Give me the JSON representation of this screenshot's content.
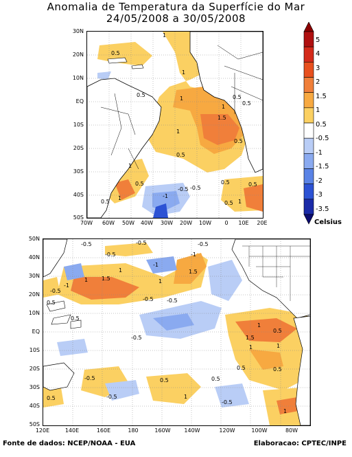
{
  "title": {
    "line1": "Anomalia de Temperatura da Superfície do Mar",
    "line2": "24/05/2008 a 30/05/2008"
  },
  "top_map": {
    "lat_ticks": [
      "30N",
      "20N",
      "10N",
      "EQ",
      "10S",
      "20S",
      "30S",
      "40S",
      "50S"
    ],
    "lon_ticks": [
      "70W",
      "60W",
      "50W",
      "40W",
      "30W",
      "20W",
      "10W",
      "0",
      "10E",
      "20E"
    ],
    "contour_labels": [
      "1",
      "0.5",
      "1",
      "0.5",
      "0.5",
      "1",
      "1",
      "0.5",
      "1.5",
      "1",
      "0.5",
      "1",
      "0.5",
      "0.5",
      "-0.5",
      "-1",
      "0.5",
      "0.5",
      "1",
      "0.5",
      "-0.5",
      "0.5",
      "1"
    ]
  },
  "bottom_map": {
    "lat_ticks": [
      "50N",
      "40N",
      "30N",
      "20N",
      "10N",
      "EQ",
      "10S",
      "20S",
      "30S",
      "40S",
      "50S"
    ],
    "lon_ticks": [
      "120E",
      "140E",
      "160E",
      "180",
      "160W",
      "140W",
      "120W",
      "100W",
      "80W"
    ],
    "contour_labels": [
      "-0.5",
      "-0.5",
      "-0.5",
      "-1",
      "1",
      "1.5",
      "1",
      "-0.5",
      "-1",
      "1.5",
      "1",
      "-0.5",
      "0.5",
      "-0.5",
      "0.5",
      "-0.5",
      "-1",
      "1",
      "1.5",
      "0.5",
      "1",
      "-0.5",
      "0.5",
      "0.5",
      "1",
      "-0.5",
      "0.5",
      "0.5",
      "1",
      "-0.5",
      "-0.5",
      "0.5",
      "1"
    ]
  },
  "legend": {
    "levels": [
      "5",
      "4",
      "3",
      "2",
      "1.5",
      "1",
      "0.5",
      "-0.5",
      "-1",
      "-1.5",
      "-2",
      "-3",
      "-3.5"
    ],
    "unit": "Celsius",
    "colors": [
      "#8b0000",
      "#b01010",
      "#d42a1a",
      "#e8501e",
      "#f07f3a",
      "#f7a941",
      "#fbd062",
      "#ffffff",
      "#b9cdf6",
      "#8aaaf0",
      "#5a83e6",
      "#2c52d4",
      "#1a2aa8",
      "#0c0c70"
    ]
  },
  "footer": {
    "source": "Fonte de dados: NCEP/NOAA - EUA",
    "credit": "Elaboracao: CPTEC/INPE"
  }
}
